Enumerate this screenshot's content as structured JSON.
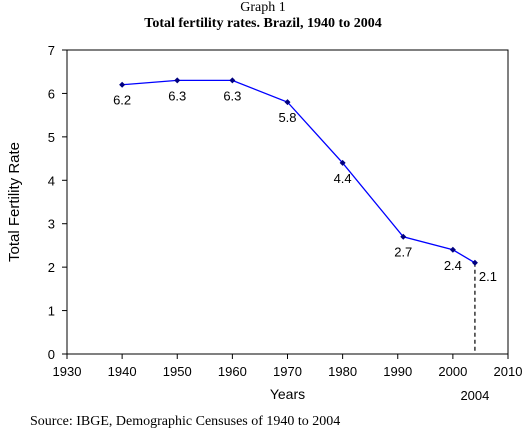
{
  "figure": {
    "caption": "Graph 1",
    "title": "Total fertility rates. Brazil, 1940 to 2004",
    "source": "Source: IBGE, Demographic Censuses of 1940 to 2004"
  },
  "chart_data": {
    "type": "line",
    "title": "Total fertility rates. Brazil, 1940 to 2004",
    "xlabel": "Years",
    "ylabel": "Total Fertility Rate",
    "xlim": [
      1930,
      2010
    ],
    "ylim": [
      0,
      7
    ],
    "xticks": [
      1930,
      1940,
      1950,
      1960,
      1970,
      1980,
      1990,
      2000,
      2010
    ],
    "yticks": [
      0,
      1,
      2,
      3,
      4,
      5,
      6,
      7
    ],
    "grid": false,
    "series": [
      {
        "x": [
          1940,
          1950,
          1960,
          1970,
          1980,
          1991,
          2000,
          2004
        ],
        "values": [
          6.2,
          6.3,
          6.3,
          5.8,
          4.4,
          2.7,
          2.4,
          2.1
        ],
        "labels": [
          "6.2",
          "6.3",
          "6.3",
          "5.8",
          "4.4",
          "2.7",
          "2.4",
          "2.1"
        ],
        "color": "#0000FF"
      }
    ],
    "annotation": {
      "x": 2004,
      "label": "2004"
    }
  }
}
